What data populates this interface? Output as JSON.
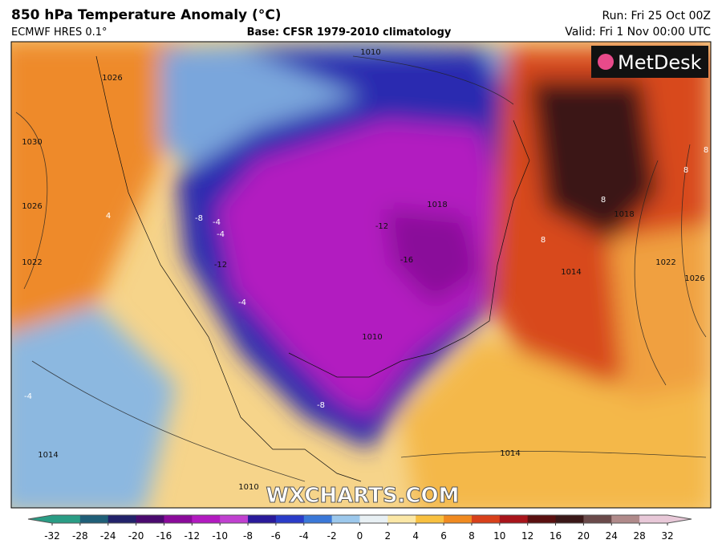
{
  "header": {
    "title": "850 hPa Temperature Anomaly (°C)",
    "model": "ECMWF HRES 0.1°",
    "base": "Base: CFSR 1979-2010 climatology",
    "run": "Run: Fri 25 Oct 00Z",
    "valid": "Valid: Fri 1 Nov 00:00 UTC"
  },
  "logo": "MetDesk",
  "watermark": "WXCHARTS.COM",
  "map_labels": [
    "1010",
    "1026",
    "1030",
    "1026",
    "1022",
    "4",
    "-4",
    "-8",
    "-4",
    "-12",
    "-4",
    "-12",
    "-16",
    "1018",
    "1026",
    "1022",
    "1018",
    "1014",
    "8",
    "8",
    "8",
    "8",
    "1014",
    "1014",
    "1010",
    "-4",
    "-8",
    "1010"
  ],
  "colorbar": {
    "ticks": [
      -32,
      -28,
      -24,
      -20,
      -16,
      -12,
      -10,
      -8,
      -6,
      -4,
      -2,
      0,
      2,
      4,
      6,
      8,
      10,
      12,
      16,
      20,
      24,
      28,
      32
    ],
    "colors": [
      "#2a9d85",
      "#1f5f78",
      "#22226a",
      "#4a0a6e",
      "#8a0a9a",
      "#b21ac0",
      "#c040d0",
      "#2a1a9a",
      "#2a3cc8",
      "#3a78d8",
      "#9cc8ec",
      "#e8f0f4",
      "#fbe7a6",
      "#f8c040",
      "#f08a20",
      "#d8401a",
      "#a8141a",
      "#5a1010",
      "#3a1818",
      "#6a4a4a",
      "#b08a8a",
      "#e8c8d8"
    ]
  }
}
